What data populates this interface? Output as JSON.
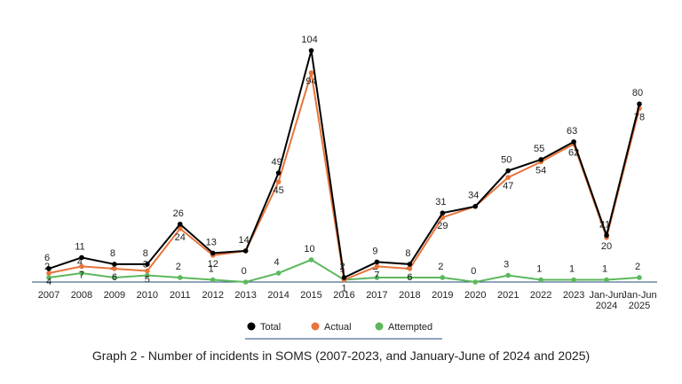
{
  "chart_data": {
    "type": "line",
    "categories": [
      "2007",
      "2008",
      "2009",
      "2010",
      "2011",
      "2012",
      "2013",
      "2014",
      "2015",
      "2016",
      "2017",
      "2018",
      "2019",
      "2020",
      "2021",
      "2022",
      "2023",
      "Jan-Jun 2024",
      "Jan-Jun 2025"
    ],
    "series": [
      {
        "name": "Total",
        "color": "#000000",
        "values": [
          6,
          11,
          8,
          8,
          26,
          13,
          14,
          49,
          104,
          2,
          9,
          8,
          31,
          34,
          50,
          55,
          63,
          21,
          80
        ]
      },
      {
        "name": "Actual",
        "color": "#e8743b",
        "values": [
          4,
          7,
          6,
          5,
          24,
          12,
          14,
          45,
          94,
          1,
          7,
          6,
          29,
          34,
          47,
          54,
          62,
          20,
          78
        ]
      },
      {
        "name": "Attempted",
        "color": "#5cb85c",
        "values": [
          2,
          4,
          2,
          3,
          2,
          1,
          0,
          4,
          10,
          1,
          2,
          2,
          2,
          0,
          3,
          1,
          1,
          1,
          2
        ]
      }
    ],
    "caption": "Graph 2 - Number of incidents in SOMS (2007-2023, and January-June of 2024 and 2025)"
  }
}
